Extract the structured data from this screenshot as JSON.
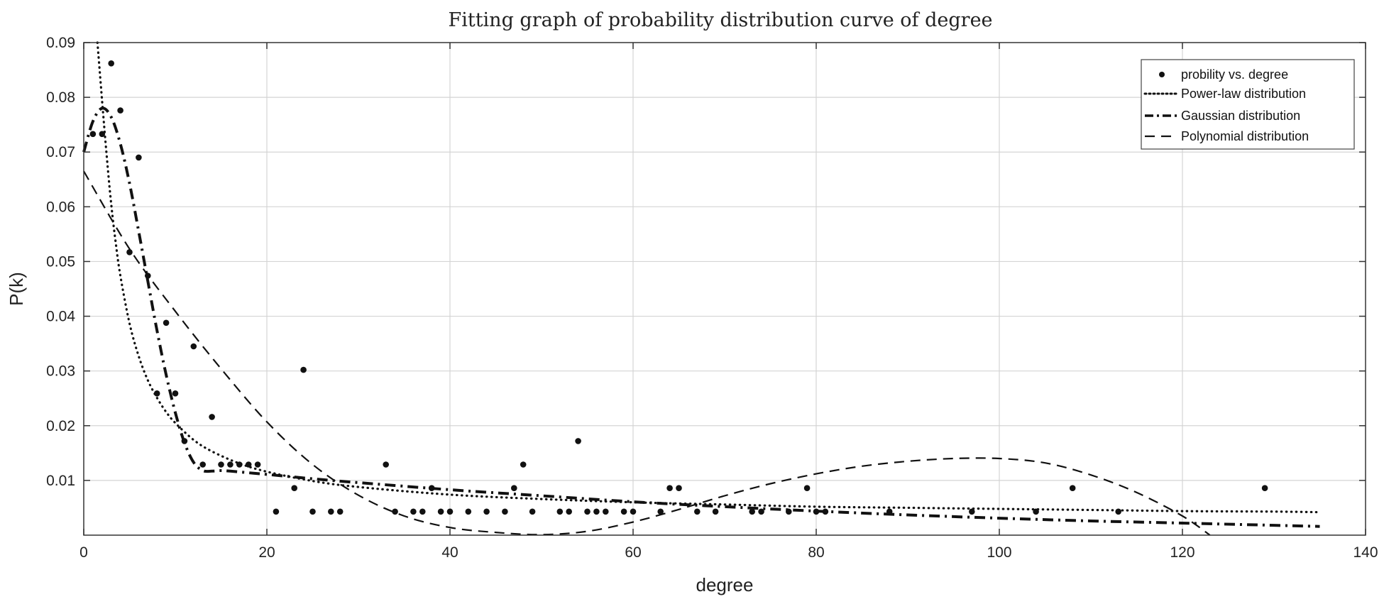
{
  "chart_data": {
    "type": "scatter",
    "title": "Fitting graph of probability distribution curve of degree",
    "xlabel": "degree",
    "ylabel": "P(k)",
    "xlim": [
      0,
      140
    ],
    "ylim": [
      0,
      0.09
    ],
    "xticks": [
      0,
      20,
      40,
      60,
      80,
      100,
      120,
      140
    ],
    "yticks": [
      0.01,
      0.02,
      0.03,
      0.04,
      0.05,
      0.06,
      0.07,
      0.08,
      0.09
    ],
    "grid": true,
    "legend_position": "top-right",
    "scatter": {
      "name": "probility vs. degree",
      "points": [
        [
          1,
          0.0733
        ],
        [
          2,
          0.0733
        ],
        [
          3,
          0.0862
        ],
        [
          4,
          0.0776
        ],
        [
          5,
          0.0517
        ],
        [
          6,
          0.069
        ],
        [
          7,
          0.0474
        ],
        [
          8,
          0.0259
        ],
        [
          9,
          0.0388
        ],
        [
          10,
          0.0259
        ],
        [
          11,
          0.0172
        ],
        [
          12,
          0.0345
        ],
        [
          13,
          0.0129
        ],
        [
          14,
          0.0216
        ],
        [
          15,
          0.0129
        ],
        [
          16,
          0.0129
        ],
        [
          17,
          0.0129
        ],
        [
          18,
          0.0129
        ],
        [
          19,
          0.0129
        ],
        [
          21,
          0.0043
        ],
        [
          23,
          0.0086
        ],
        [
          24,
          0.0302
        ],
        [
          25,
          0.0043
        ],
        [
          27,
          0.0043
        ],
        [
          28,
          0.0043
        ],
        [
          33,
          0.0129
        ],
        [
          34,
          0.0043
        ],
        [
          36,
          0.0043
        ],
        [
          37,
          0.0043
        ],
        [
          38,
          0.0086
        ],
        [
          39,
          0.0043
        ],
        [
          40,
          0.0043
        ],
        [
          42,
          0.0043
        ],
        [
          44,
          0.0043
        ],
        [
          46,
          0.0043
        ],
        [
          47,
          0.0086
        ],
        [
          48,
          0.0129
        ],
        [
          49,
          0.0043
        ],
        [
          52,
          0.0043
        ],
        [
          53,
          0.0043
        ],
        [
          54,
          0.0172
        ],
        [
          55,
          0.0043
        ],
        [
          56,
          0.0043
        ],
        [
          57,
          0.0043
        ],
        [
          59,
          0.0043
        ],
        [
          60,
          0.0043
        ],
        [
          63,
          0.0043
        ],
        [
          64,
          0.0086
        ],
        [
          65,
          0.0086
        ],
        [
          67,
          0.0043
        ],
        [
          69,
          0.0043
        ],
        [
          73,
          0.0043
        ],
        [
          74,
          0.0043
        ],
        [
          77,
          0.0043
        ],
        [
          79,
          0.0086
        ],
        [
          80,
          0.0043
        ],
        [
          81,
          0.0043
        ],
        [
          88,
          0.0043
        ],
        [
          97,
          0.0043
        ],
        [
          104,
          0.0043
        ],
        [
          108,
          0.0086
        ],
        [
          113,
          0.0043
        ],
        [
          129,
          0.0086
        ]
      ]
    },
    "series": [
      {
        "name": "Power-law distribution",
        "style": "dotted",
        "x": [
          1.5,
          2,
          2.5,
          3,
          3.5,
          4,
          5,
          6,
          7,
          8,
          9,
          10,
          12,
          14,
          17,
          20,
          25,
          30,
          40,
          50,
          60,
          70,
          80,
          90,
          100,
          110,
          120,
          130,
          135
        ],
        "y": [
          0.09,
          0.0794,
          0.0694,
          0.0605,
          0.0533,
          0.0474,
          0.0387,
          0.0327,
          0.0283,
          0.0251,
          0.0225,
          0.0205,
          0.0174,
          0.0153,
          0.0131,
          0.0116,
          0.0099,
          0.0088,
          0.0074,
          0.0066,
          0.006,
          0.0056,
          0.0052,
          0.005,
          0.0048,
          0.0046,
          0.0044,
          0.0043,
          0.0042
        ]
      },
      {
        "name": "Gaussian distribution",
        "style": "dashdot",
        "x": [
          0,
          1,
          2,
          3,
          4,
          5,
          6,
          7,
          8,
          9,
          10,
          11,
          12,
          13,
          14,
          15,
          16,
          18,
          20,
          25,
          30,
          40,
          50,
          60,
          70,
          80,
          90,
          100,
          110,
          120,
          130,
          135
        ],
        "y": [
          0.07,
          0.0756,
          0.078,
          0.0764,
          0.0715,
          0.0643,
          0.0555,
          0.0464,
          0.0374,
          0.0293,
          0.0224,
          0.0169,
          0.0133,
          0.0118,
          0.0117,
          0.0118,
          0.0117,
          0.0114,
          0.0111,
          0.0103,
          0.0096,
          0.0083,
          0.0072,
          0.0061,
          0.0052,
          0.0044,
          0.0037,
          0.0031,
          0.0026,
          0.0022,
          0.0018,
          0.0016
        ]
      },
      {
        "name": "Polynomial distribution",
        "style": "dashed",
        "x": [
          0,
          5,
          10,
          15,
          20,
          25,
          30,
          35,
          40,
          45,
          50,
          55,
          60,
          65,
          70,
          75,
          80,
          85,
          90,
          95,
          100,
          105,
          110,
          115,
          120,
          123
        ],
        "y": [
          0.0665,
          0.0523,
          0.0409,
          0.0304,
          0.0207,
          0.0129,
          0.0073,
          0.0035,
          0.0014,
          0.0005,
          0.0001,
          0.0007,
          0.0024,
          0.0047,
          0.0072,
          0.0094,
          0.0112,
          0.0126,
          0.0135,
          0.014,
          0.014,
          0.0132,
          0.011,
          0.0078,
          0.0035,
          0.0
        ]
      }
    ]
  }
}
